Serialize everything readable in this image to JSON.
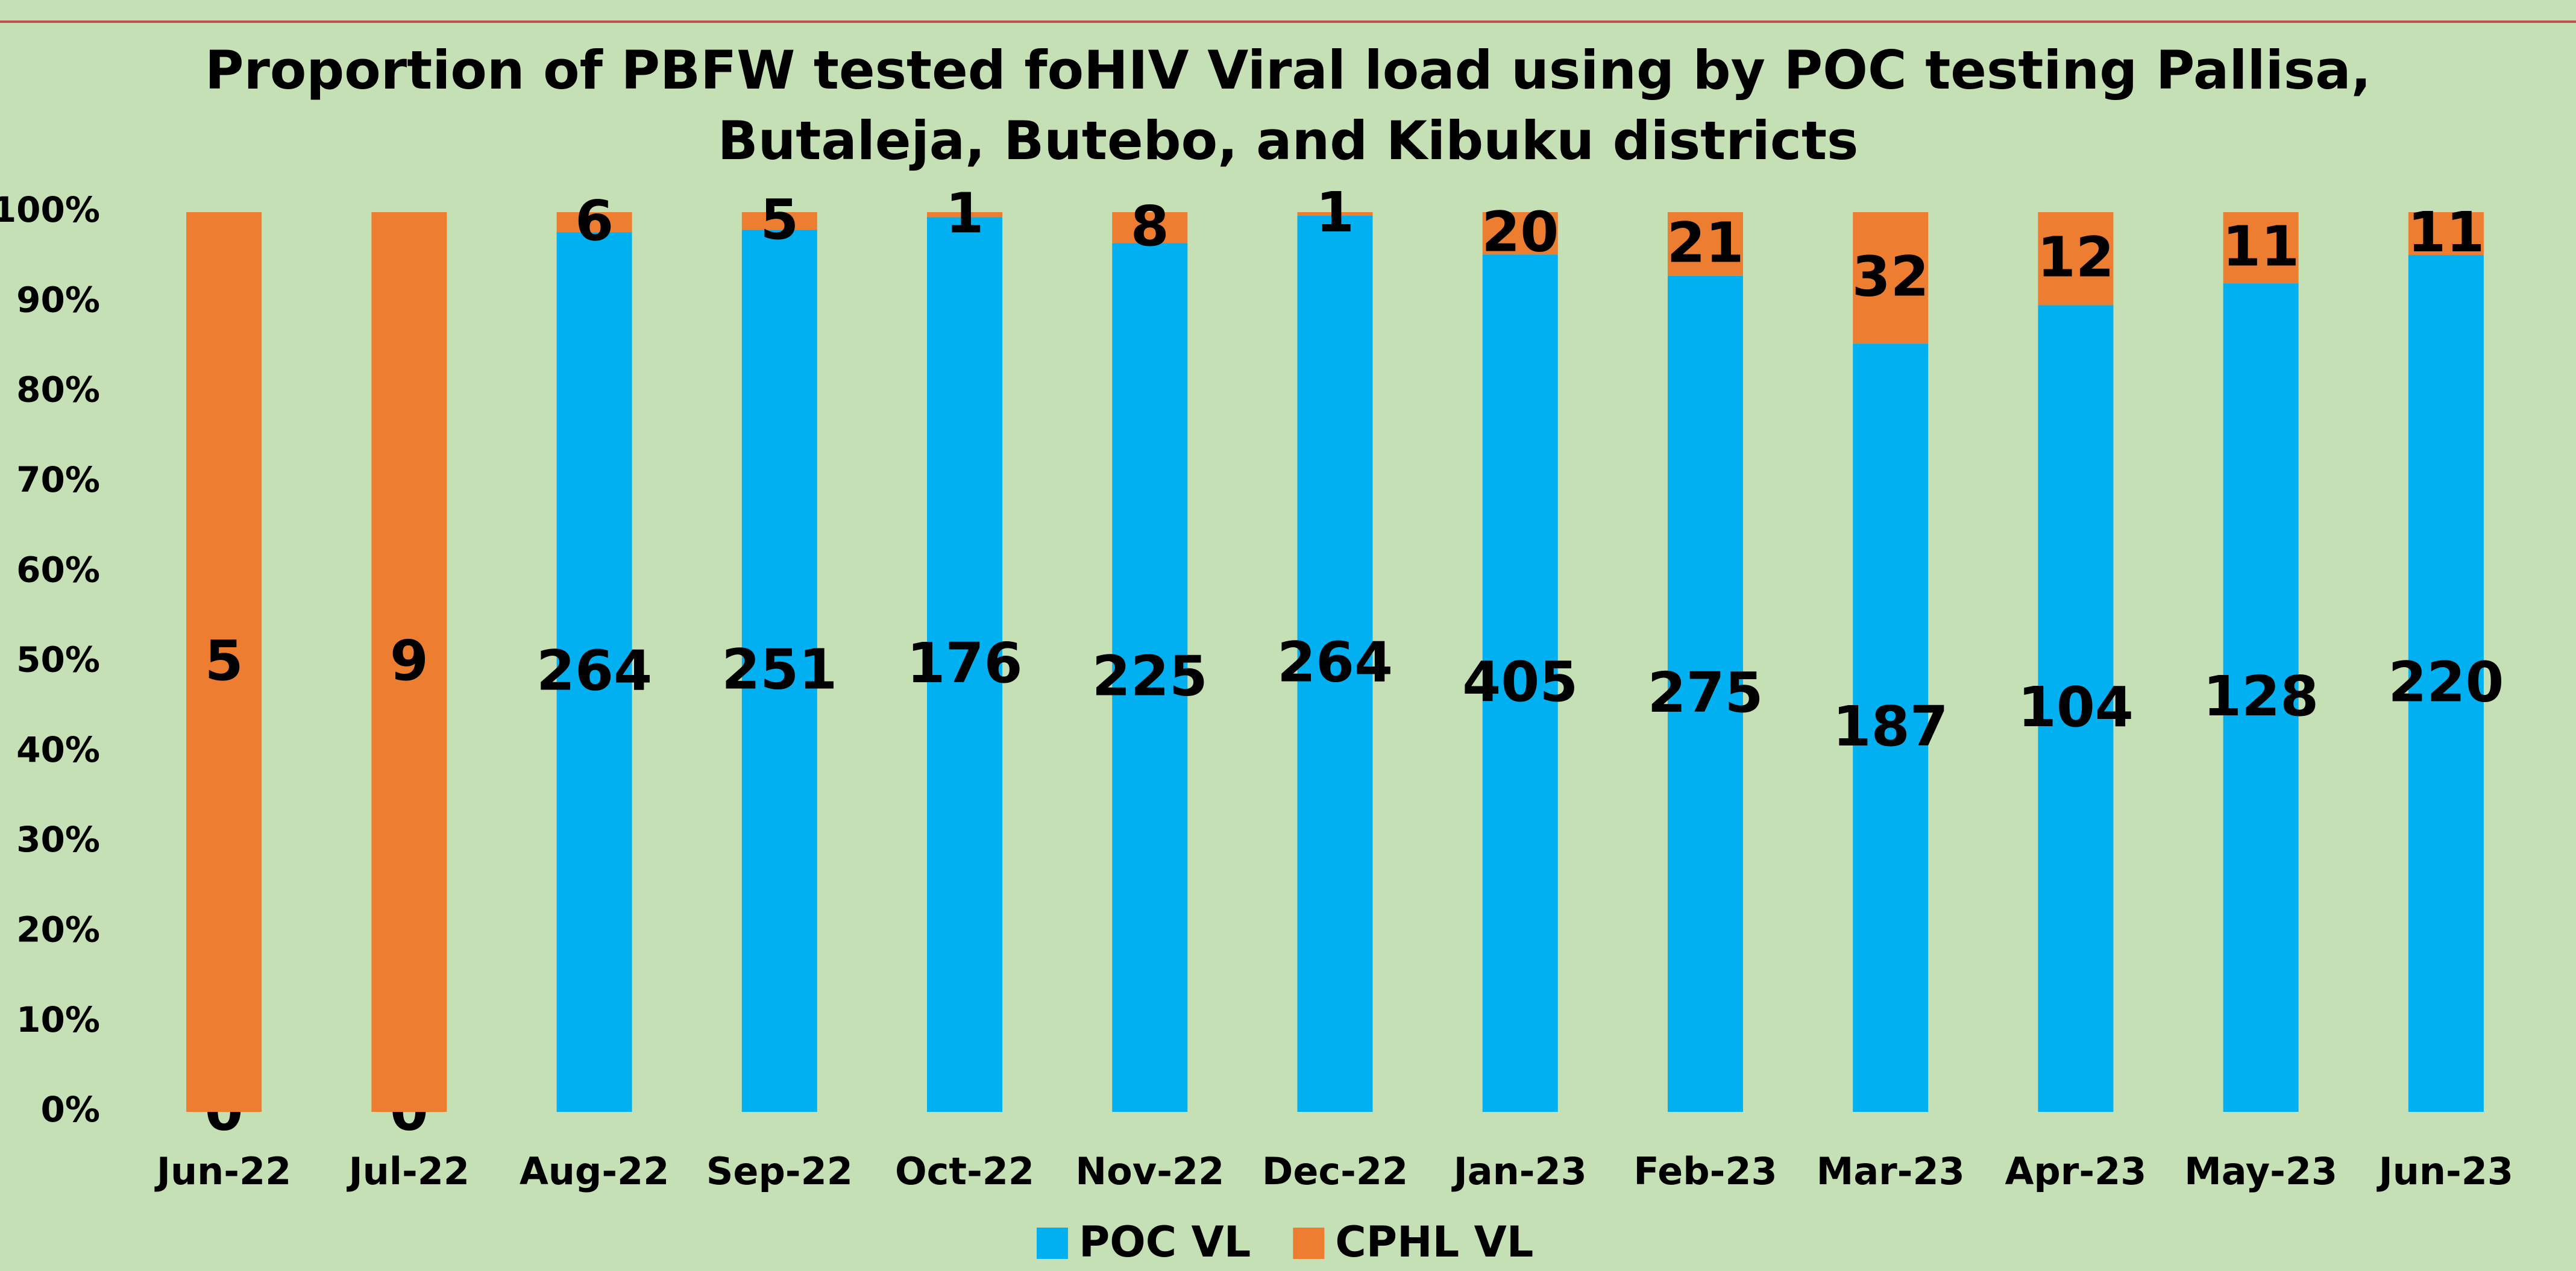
{
  "chart_data": {
    "type": "bar",
    "stacking": "percent",
    "title": [
      "Proportion of PBFW tested foHIV Viral load using by POC testing Pallisa,",
      "Butaleja, Butebo, and Kibuku districts"
    ],
    "categories": [
      "Jun-22",
      "Jul-22",
      "Aug-22",
      "Sep-22",
      "Oct-22",
      "Nov-22",
      "Dec-22",
      "Jan-23",
      "Feb-23",
      "Mar-23",
      "Apr-23",
      "May-23",
      "Jun-23"
    ],
    "series": [
      {
        "name": "POC VL",
        "color": "#00b0f0",
        "values": [
          0,
          0,
          264,
          251,
          176,
          225,
          264,
          405,
          275,
          187,
          104,
          128,
          220
        ]
      },
      {
        "name": "CPHL VL",
        "color": "#ed7d31",
        "values": [
          5,
          9,
          6,
          5,
          1,
          8,
          1,
          20,
          21,
          32,
          12,
          11,
          11
        ]
      }
    ],
    "ylim": [
      0,
      100
    ],
    "yticks": [
      {
        "value": 0,
        "label": "0%"
      },
      {
        "value": 10,
        "label": "10%"
      },
      {
        "value": 20,
        "label": "20%"
      },
      {
        "value": 30,
        "label": "30%"
      },
      {
        "value": 40,
        "label": "40%"
      },
      {
        "value": 50,
        "label": "50%"
      },
      {
        "value": 60,
        "label": "60%"
      },
      {
        "value": 70,
        "label": "70%"
      },
      {
        "value": 80,
        "label": "80%"
      },
      {
        "value": 90,
        "label": "90%"
      },
      {
        "value": 100,
        "label": "100%"
      }
    ],
    "grid": false,
    "legend": "bottom"
  }
}
